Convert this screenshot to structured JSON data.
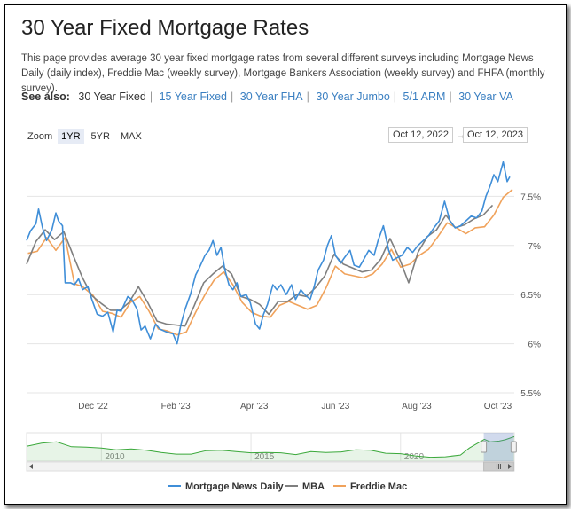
{
  "page": {
    "title": "30 Year Fixed Mortgage Rates",
    "description": "This page provides average 30 year fixed mortgage rates from several different surveys including Mortgage News Daily (daily index), Freddie Mac (weekly survey), Mortgage Bankers Association (weekly survey) and FHFA (monthly survey).",
    "see_also_label": "See also:",
    "see_also": [
      "30 Year Fixed",
      "15 Year Fixed",
      "30 Year FHA",
      "30 Year Jumbo",
      "5/1 ARM",
      "30 Year VA"
    ]
  },
  "controls": {
    "zoom_label": "Zoom",
    "zoom_options": [
      "1YR",
      "5YR",
      "MAX"
    ],
    "zoom_selected": "1YR",
    "date_from": "Oct 12, 2022",
    "date_to": "Oct 12, 2023",
    "arrow": "→"
  },
  "colors": {
    "mnd": "#3f8ed8",
    "mba": "#7f7f7f",
    "freddie": "#f0a25b",
    "navigator": "#3aa83a"
  },
  "chart_data": {
    "type": "line",
    "ylim": [
      5.5,
      8.0
    ],
    "yticks": [
      5.5,
      6.0,
      6.5,
      7.0,
      7.5
    ],
    "ytick_labels": [
      "5.5%",
      "6%",
      "6.5%",
      "7%",
      "7.5%"
    ],
    "xlim": [
      "2022-10-12",
      "2023-10-12"
    ],
    "xticks": [
      "2022-12-01",
      "2023-02-01",
      "2023-04-01",
      "2023-06-01",
      "2023-08-01",
      "2023-10-01"
    ],
    "xtick_labels": [
      "Dec '22",
      "Feb '23",
      "Apr '23",
      "Jun '23",
      "Aug '23",
      "Oct '23"
    ],
    "legend_position": "bottom",
    "series": [
      {
        "name": "Mortgage News Daily",
        "points": [
          [
            "2022-10-12",
            7.05
          ],
          [
            "2022-10-15",
            7.15
          ],
          [
            "2022-10-19",
            7.22
          ],
          [
            "2022-10-21",
            7.37
          ],
          [
            "2022-10-24",
            7.18
          ],
          [
            "2022-10-27",
            7.05
          ],
          [
            "2022-10-31",
            7.16
          ],
          [
            "2022-11-03",
            7.33
          ],
          [
            "2022-11-05",
            7.25
          ],
          [
            "2022-11-08",
            7.2
          ],
          [
            "2022-11-10",
            6.62
          ],
          [
            "2022-11-14",
            6.62
          ],
          [
            "2022-11-17",
            6.6
          ],
          [
            "2022-11-20",
            6.66
          ],
          [
            "2022-11-23",
            6.55
          ],
          [
            "2022-11-27",
            6.58
          ],
          [
            "2022-11-30",
            6.45
          ],
          [
            "2022-12-04",
            6.3
          ],
          [
            "2022-12-08",
            6.28
          ],
          [
            "2022-12-12",
            6.32
          ],
          [
            "2022-12-16",
            6.12
          ],
          [
            "2022-12-19",
            6.34
          ],
          [
            "2022-12-22",
            6.33
          ],
          [
            "2022-12-27",
            6.48
          ],
          [
            "2022-12-30",
            6.45
          ],
          [
            "2023-01-03",
            6.35
          ],
          [
            "2023-01-06",
            6.14
          ],
          [
            "2023-01-09",
            6.18
          ],
          [
            "2023-01-13",
            6.05
          ],
          [
            "2023-01-17",
            6.2
          ],
          [
            "2023-01-20",
            6.15
          ],
          [
            "2023-01-25",
            6.12
          ],
          [
            "2023-01-30",
            6.1
          ],
          [
            "2023-02-02",
            6.0
          ],
          [
            "2023-02-05",
            6.2
          ],
          [
            "2023-02-08",
            6.35
          ],
          [
            "2023-02-12",
            6.5
          ],
          [
            "2023-02-16",
            6.7
          ],
          [
            "2023-02-19",
            6.78
          ],
          [
            "2023-02-23",
            6.9
          ],
          [
            "2023-02-26",
            6.95
          ],
          [
            "2023-03-01",
            7.05
          ],
          [
            "2023-03-04",
            6.9
          ],
          [
            "2023-03-07",
            6.98
          ],
          [
            "2023-03-10",
            6.75
          ],
          [
            "2023-03-13",
            6.6
          ],
          [
            "2023-03-16",
            6.55
          ],
          [
            "2023-03-19",
            6.62
          ],
          [
            "2023-03-22",
            6.48
          ],
          [
            "2023-03-26",
            6.5
          ],
          [
            "2023-03-29",
            6.42
          ],
          [
            "2023-04-02",
            6.2
          ],
          [
            "2023-04-05",
            6.15
          ],
          [
            "2023-04-08",
            6.3
          ],
          [
            "2023-04-11",
            6.4
          ],
          [
            "2023-04-15",
            6.6
          ],
          [
            "2023-04-18",
            6.55
          ],
          [
            "2023-04-21",
            6.6
          ],
          [
            "2023-04-25",
            6.5
          ],
          [
            "2023-04-29",
            6.6
          ],
          [
            "2023-05-02",
            6.45
          ],
          [
            "2023-05-06",
            6.55
          ],
          [
            "2023-05-09",
            6.5
          ],
          [
            "2023-05-13",
            6.45
          ],
          [
            "2023-05-16",
            6.58
          ],
          [
            "2023-05-19",
            6.75
          ],
          [
            "2023-05-23",
            6.85
          ],
          [
            "2023-05-26",
            7.0
          ],
          [
            "2023-05-29",
            7.1
          ],
          [
            "2023-06-01",
            6.9
          ],
          [
            "2023-06-05",
            6.82
          ],
          [
            "2023-06-08",
            6.88
          ],
          [
            "2023-06-12",
            6.95
          ],
          [
            "2023-06-15",
            6.8
          ],
          [
            "2023-06-19",
            6.78
          ],
          [
            "2023-06-22",
            6.85
          ],
          [
            "2023-06-26",
            6.95
          ],
          [
            "2023-06-30",
            6.9
          ],
          [
            "2023-07-03",
            7.05
          ],
          [
            "2023-07-07",
            7.2
          ],
          [
            "2023-07-11",
            6.95
          ],
          [
            "2023-07-14",
            6.85
          ],
          [
            "2023-07-18",
            6.88
          ],
          [
            "2023-07-21",
            6.9
          ],
          [
            "2023-07-25",
            6.98
          ],
          [
            "2023-07-29",
            6.93
          ],
          [
            "2023-08-02",
            7.0
          ],
          [
            "2023-08-06",
            7.05
          ],
          [
            "2023-08-10",
            7.1
          ],
          [
            "2023-08-14",
            7.18
          ],
          [
            "2023-08-18",
            7.25
          ],
          [
            "2023-08-22",
            7.45
          ],
          [
            "2023-08-26",
            7.25
          ],
          [
            "2023-08-30",
            7.18
          ],
          [
            "2023-09-03",
            7.2
          ],
          [
            "2023-09-07",
            7.25
          ],
          [
            "2023-09-11",
            7.3
          ],
          [
            "2023-09-15",
            7.28
          ],
          [
            "2023-09-19",
            7.35
          ],
          [
            "2023-09-22",
            7.5
          ],
          [
            "2023-09-25",
            7.6
          ],
          [
            "2023-09-28",
            7.72
          ],
          [
            "2023-10-01",
            7.65
          ],
          [
            "2023-10-05",
            7.85
          ],
          [
            "2023-10-08",
            7.65
          ],
          [
            "2023-10-10",
            7.7
          ]
        ]
      },
      {
        "name": "MBA",
        "points": [
          [
            "2022-10-12",
            6.81
          ],
          [
            "2022-10-19",
            7.04
          ],
          [
            "2022-10-26",
            7.16
          ],
          [
            "2022-11-02",
            7.06
          ],
          [
            "2022-11-09",
            7.14
          ],
          [
            "2022-11-16",
            6.9
          ],
          [
            "2022-11-23",
            6.67
          ],
          [
            "2022-11-30",
            6.49
          ],
          [
            "2022-12-07",
            6.41
          ],
          [
            "2022-12-14",
            6.34
          ],
          [
            "2022-12-21",
            6.34
          ],
          [
            "2022-12-28",
            6.42
          ],
          [
            "2023-01-04",
            6.58
          ],
          [
            "2023-01-11",
            6.42
          ],
          [
            "2023-01-18",
            6.23
          ],
          [
            "2023-01-25",
            6.2
          ],
          [
            "2023-02-01",
            6.19
          ],
          [
            "2023-02-08",
            6.18
          ],
          [
            "2023-02-15",
            6.39
          ],
          [
            "2023-02-22",
            6.62
          ],
          [
            "2023-03-01",
            6.71
          ],
          [
            "2023-03-08",
            6.79
          ],
          [
            "2023-03-15",
            6.71
          ],
          [
            "2023-03-22",
            6.48
          ],
          [
            "2023-03-29",
            6.45
          ],
          [
            "2023-04-05",
            6.4
          ],
          [
            "2023-04-12",
            6.3
          ],
          [
            "2023-04-19",
            6.43
          ],
          [
            "2023-04-26",
            6.43
          ],
          [
            "2023-05-03",
            6.5
          ],
          [
            "2023-05-10",
            6.48
          ],
          [
            "2023-05-17",
            6.57
          ],
          [
            "2023-05-24",
            6.69
          ],
          [
            "2023-05-31",
            6.91
          ],
          [
            "2023-06-07",
            6.81
          ],
          [
            "2023-06-14",
            6.77
          ],
          [
            "2023-06-21",
            6.73
          ],
          [
            "2023-06-28",
            6.75
          ],
          [
            "2023-07-05",
            6.86
          ],
          [
            "2023-07-12",
            7.07
          ],
          [
            "2023-07-19",
            6.87
          ],
          [
            "2023-07-26",
            6.62
          ],
          [
            "2023-08-02",
            6.93
          ],
          [
            "2023-08-09",
            7.09
          ],
          [
            "2023-08-16",
            7.16
          ],
          [
            "2023-08-23",
            7.31
          ],
          [
            "2023-08-30",
            7.18
          ],
          [
            "2023-09-06",
            7.21
          ],
          [
            "2023-09-13",
            7.27
          ],
          [
            "2023-09-20",
            7.31
          ],
          [
            "2023-09-27",
            7.41
          ]
        ]
      },
      {
        "name": "Freddie Mac",
        "points": [
          [
            "2022-10-13",
            6.92
          ],
          [
            "2022-10-20",
            6.94
          ],
          [
            "2022-10-27",
            7.08
          ],
          [
            "2022-11-03",
            6.95
          ],
          [
            "2022-11-10",
            7.08
          ],
          [
            "2022-11-17",
            6.61
          ],
          [
            "2022-11-23",
            6.58
          ],
          [
            "2022-12-01",
            6.49
          ],
          [
            "2022-12-08",
            6.33
          ],
          [
            "2022-12-15",
            6.31
          ],
          [
            "2022-12-22",
            6.27
          ],
          [
            "2022-12-29",
            6.42
          ],
          [
            "2023-01-05",
            6.48
          ],
          [
            "2023-01-12",
            6.33
          ],
          [
            "2023-01-19",
            6.15
          ],
          [
            "2023-01-26",
            6.13
          ],
          [
            "2023-02-02",
            6.09
          ],
          [
            "2023-02-09",
            6.12
          ],
          [
            "2023-02-16",
            6.32
          ],
          [
            "2023-02-23",
            6.5
          ],
          [
            "2023-03-02",
            6.65
          ],
          [
            "2023-03-09",
            6.73
          ],
          [
            "2023-03-16",
            6.6
          ],
          [
            "2023-03-23",
            6.42
          ],
          [
            "2023-03-30",
            6.32
          ],
          [
            "2023-04-06",
            6.28
          ],
          [
            "2023-04-13",
            6.27
          ],
          [
            "2023-04-20",
            6.39
          ],
          [
            "2023-04-27",
            6.43
          ],
          [
            "2023-05-04",
            6.39
          ],
          [
            "2023-05-11",
            6.35
          ],
          [
            "2023-05-18",
            6.39
          ],
          [
            "2023-05-25",
            6.57
          ],
          [
            "2023-06-01",
            6.79
          ],
          [
            "2023-06-08",
            6.71
          ],
          [
            "2023-06-15",
            6.69
          ],
          [
            "2023-06-22",
            6.67
          ],
          [
            "2023-06-29",
            6.71
          ],
          [
            "2023-07-06",
            6.81
          ],
          [
            "2023-07-13",
            6.96
          ],
          [
            "2023-07-20",
            6.78
          ],
          [
            "2023-07-27",
            6.81
          ],
          [
            "2023-08-03",
            6.9
          ],
          [
            "2023-08-10",
            6.96
          ],
          [
            "2023-08-17",
            7.09
          ],
          [
            "2023-08-24",
            7.23
          ],
          [
            "2023-08-31",
            7.18
          ],
          [
            "2023-09-07",
            7.12
          ],
          [
            "2023-09-14",
            7.18
          ],
          [
            "2023-09-21",
            7.19
          ],
          [
            "2023-09-28",
            7.31
          ],
          [
            "2023-10-05",
            7.49
          ],
          [
            "2023-10-12",
            7.57
          ]
        ]
      }
    ],
    "navigator": {
      "xtick_labels": [
        "2010",
        "2015",
        "2020"
      ],
      "xtick_years": [
        2010,
        2015,
        2020
      ],
      "range_years": [
        2007.5,
        2023.8
      ],
      "selected_years": [
        2022.78,
        2023.78
      ],
      "points": [
        [
          2007.5,
          5.4
        ],
        [
          2008,
          6.1
        ],
        [
          2008.5,
          6.4
        ],
        [
          2009,
          5.3
        ],
        [
          2009.5,
          5.2
        ],
        [
          2010,
          5.0
        ],
        [
          2010.5,
          4.6
        ],
        [
          2011,
          4.8
        ],
        [
          2011.5,
          4.5
        ],
        [
          2012,
          4.0
        ],
        [
          2012.5,
          3.6
        ],
        [
          2013,
          3.6
        ],
        [
          2013.5,
          4.4
        ],
        [
          2014,
          4.5
        ],
        [
          2014.5,
          4.2
        ],
        [
          2015,
          3.9
        ],
        [
          2015.5,
          4.0
        ],
        [
          2016,
          3.9
        ],
        [
          2016.5,
          3.5
        ],
        [
          2017,
          4.2
        ],
        [
          2017.5,
          4.0
        ],
        [
          2018,
          4.1
        ],
        [
          2018.5,
          4.6
        ],
        [
          2019,
          4.5
        ],
        [
          2019.5,
          3.8
        ],
        [
          2020,
          3.7
        ],
        [
          2020.5,
          3.2
        ],
        [
          2021,
          2.9
        ],
        [
          2021.5,
          3.0
        ],
        [
          2022,
          3.4
        ],
        [
          2022.3,
          5.0
        ],
        [
          2022.5,
          5.8
        ],
        [
          2022.8,
          7.0
        ],
        [
          2023,
          6.4
        ],
        [
          2023.3,
          6.6
        ],
        [
          2023.5,
          6.9
        ],
        [
          2023.8,
          7.6
        ]
      ]
    }
  }
}
